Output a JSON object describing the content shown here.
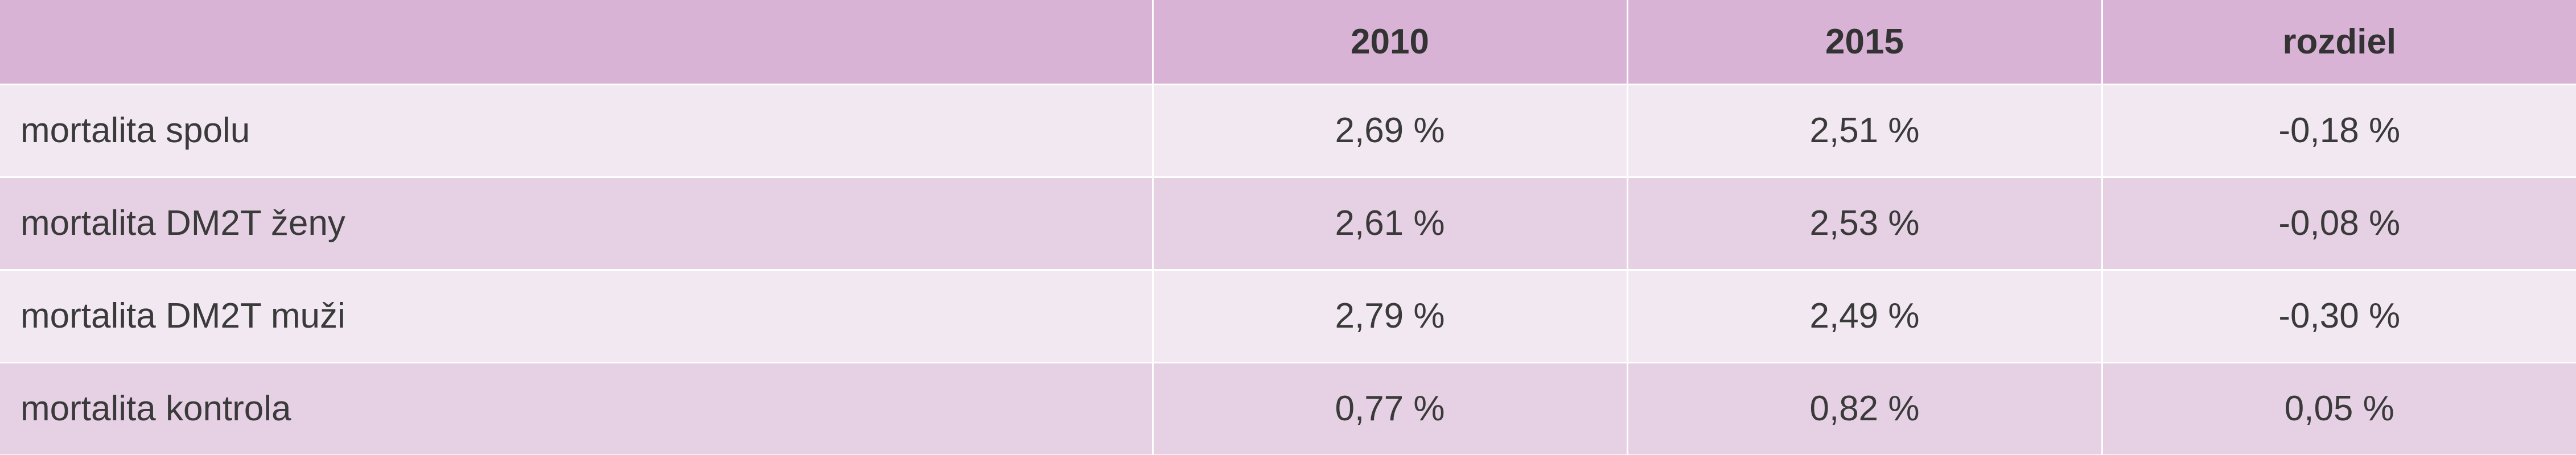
{
  "table": {
    "headers": [
      "",
      "2010",
      "2015",
      "rozdiel"
    ],
    "rows": [
      {
        "label": "mortalita spolu",
        "v2010": "2,69 %",
        "v2015": "2,51 %",
        "diff": "-0,18 %"
      },
      {
        "label": "mortalita DM2T ženy",
        "v2010": "2,61 %",
        "v2015": "2,53 %",
        "diff": "-0,08 %"
      },
      {
        "label": "mortalita DM2T muži",
        "v2010": "2,79 %",
        "v2015": "2,49 %",
        "diff": "-0,30 %"
      },
      {
        "label": "mortalita kontrola",
        "v2010": "0,77 %",
        "v2015": "0,82 %",
        "diff": "0,05 %"
      }
    ]
  },
  "colors": {
    "header_bg": "#d9b3d6",
    "row_light": "#f2e8f1",
    "row_dark": "#e6d1e4",
    "text": "#3a3a3a"
  }
}
